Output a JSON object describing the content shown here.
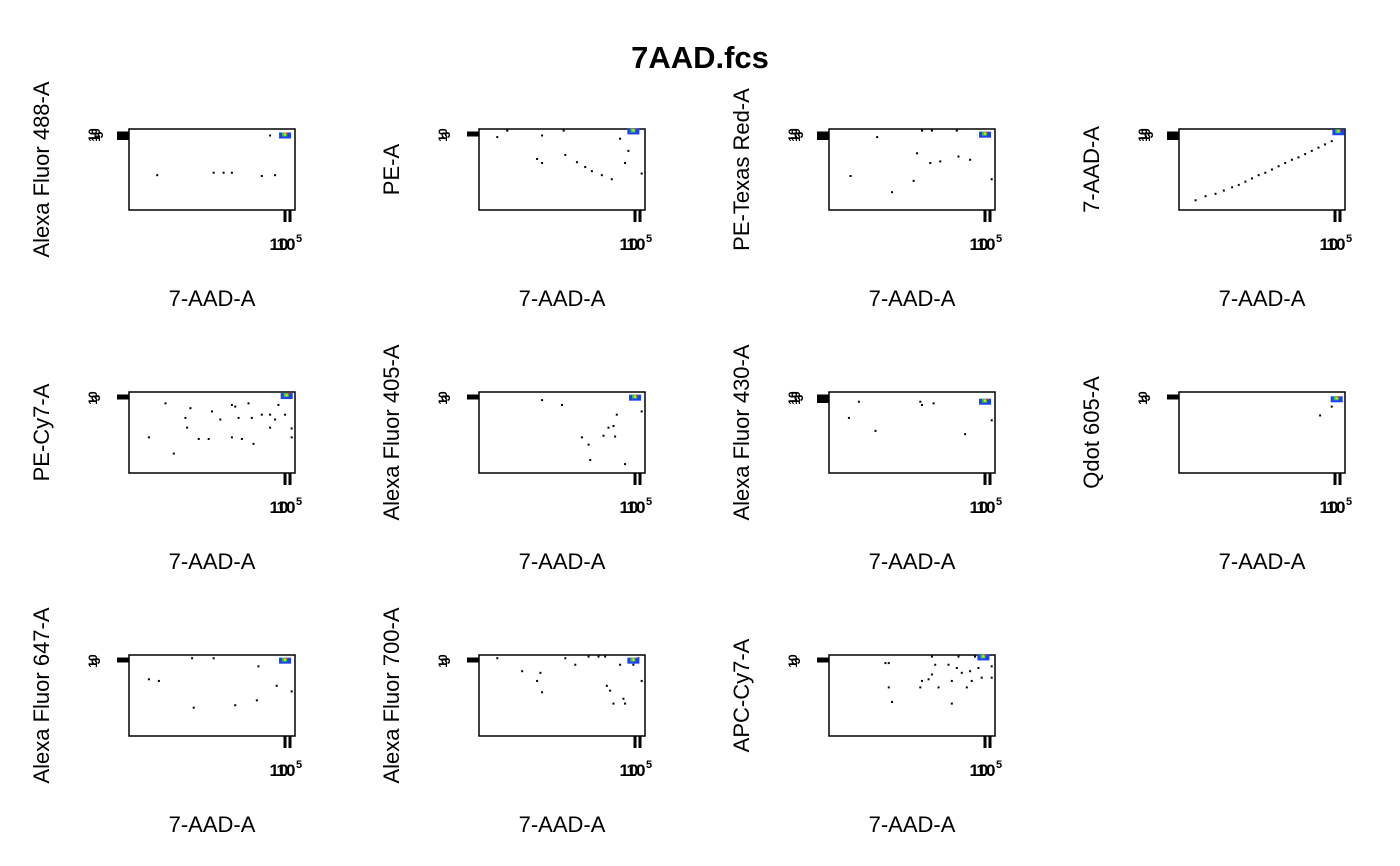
{
  "page": {
    "title": "7AAD.fcs"
  },
  "colors": {
    "axis": "#000000",
    "dot": "#000000",
    "dense_low": "#1f3fff",
    "dense_mid": "#2ecc40",
    "dense_high": "#ffdc00",
    "dense_peak": "#ff3b1f"
  },
  "chart_data": [
    {
      "type": "scatter",
      "xlabel": "7-AAD-A",
      "ylabel": "Alexa Fluor 488-A",
      "x_ticks": [
        "10",
        "10",
        "5"
      ],
      "y_ticks": [
        "10",
        "10",
        "5"
      ],
      "xlim": [
        0,
        1
      ],
      "ylim": [
        0,
        1
      ],
      "points": [
        [
          0.17,
          0.43
        ],
        [
          0.51,
          0.46
        ],
        [
          0.57,
          0.46
        ],
        [
          0.62,
          0.46
        ],
        [
          0.8,
          0.42
        ],
        [
          0.88,
          0.43
        ],
        [
          0.85,
          0.92
        ]
      ],
      "dense_cluster": {
        "x": 0.94,
        "y": 0.92
      }
    },
    {
      "type": "scatter",
      "xlabel": "7-AAD-A",
      "ylabel": "PE-A",
      "x_ticks": [
        "10",
        "10",
        "5"
      ],
      "y_ticks": [
        "10",
        "3"
      ],
      "xlim": [
        0,
        1
      ],
      "ylim": [
        0,
        1
      ],
      "points": [
        [
          0.11,
          0.9
        ],
        [
          0.17,
          0.98
        ],
        [
          0.38,
          0.92
        ],
        [
          0.51,
          0.98
        ],
        [
          0.35,
          0.63
        ],
        [
          0.38,
          0.58
        ],
        [
          0.52,
          0.68
        ],
        [
          0.59,
          0.59
        ],
        [
          0.64,
          0.53
        ],
        [
          0.68,
          0.48
        ],
        [
          0.74,
          0.43
        ],
        [
          0.8,
          0.38
        ],
        [
          0.85,
          0.88
        ],
        [
          0.88,
          0.58
        ],
        [
          0.9,
          0.73
        ],
        [
          0.98,
          0.45
        ]
      ],
      "dense_cluster": {
        "x": 0.93,
        "y": 0.97
      }
    },
    {
      "type": "scatter",
      "xlabel": "7-AAD-A",
      "ylabel": "PE-Texas Red-A",
      "x_ticks": [
        "10",
        "10",
        "5"
      ],
      "y_ticks": [
        "10",
        "10",
        "3"
      ],
      "xlim": [
        0,
        1
      ],
      "ylim": [
        0,
        1
      ],
      "points": [
        [
          0.13,
          0.42
        ],
        [
          0.29,
          0.9
        ],
        [
          0.56,
          0.98
        ],
        [
          0.62,
          0.98
        ],
        [
          0.77,
          0.98
        ],
        [
          0.53,
          0.7
        ],
        [
          0.61,
          0.58
        ],
        [
          0.67,
          0.6
        ],
        [
          0.78,
          0.66
        ],
        [
          0.85,
          0.62
        ],
        [
          0.38,
          0.22
        ],
        [
          0.51,
          0.36
        ],
        [
          0.98,
          0.38
        ]
      ],
      "dense_cluster": {
        "x": 0.94,
        "y": 0.93
      }
    },
    {
      "type": "scatter",
      "xlabel": "7-AAD-A",
      "ylabel": "7-AAD-A",
      "x_ticks": [
        "10",
        "10",
        "5"
      ],
      "y_ticks": [
        "10",
        "10",
        "3"
      ],
      "xlim": [
        0,
        1
      ],
      "ylim": [
        0,
        1
      ],
      "points": [
        [
          0.1,
          0.12
        ],
        [
          0.16,
          0.17
        ],
        [
          0.22,
          0.2
        ],
        [
          0.27,
          0.24
        ],
        [
          0.32,
          0.28
        ],
        [
          0.36,
          0.31
        ],
        [
          0.4,
          0.35
        ],
        [
          0.44,
          0.39
        ],
        [
          0.48,
          0.43
        ],
        [
          0.52,
          0.46
        ],
        [
          0.56,
          0.5
        ],
        [
          0.6,
          0.54
        ],
        [
          0.64,
          0.58
        ],
        [
          0.68,
          0.62
        ],
        [
          0.72,
          0.65
        ],
        [
          0.76,
          0.69
        ],
        [
          0.8,
          0.73
        ],
        [
          0.84,
          0.77
        ],
        [
          0.88,
          0.81
        ],
        [
          0.92,
          0.85
        ]
      ],
      "dense_cluster": {
        "x": 0.96,
        "y": 0.96
      }
    },
    {
      "type": "scatter",
      "xlabel": "7-AAD-A",
      "ylabel": "PE-Cy7-A",
      "x_ticks": [
        "10",
        "10",
        "5"
      ],
      "y_ticks": [
        "10",
        "3"
      ],
      "xlim": [
        0,
        1
      ],
      "ylim": [
        0,
        1
      ],
      "points": [
        [
          0.12,
          0.44
        ],
        [
          0.22,
          0.86
        ],
        [
          0.27,
          0.24
        ],
        [
          0.35,
          0.56
        ],
        [
          0.37,
          0.8
        ],
        [
          0.42,
          0.42
        ],
        [
          0.48,
          0.42
        ],
        [
          0.55,
          0.66
        ],
        [
          0.62,
          0.84
        ],
        [
          0.64,
          0.82
        ],
        [
          0.66,
          0.68
        ],
        [
          0.62,
          0.44
        ],
        [
          0.68,
          0.42
        ],
        [
          0.72,
          0.86
        ],
        [
          0.74,
          0.68
        ],
        [
          0.75,
          0.36
        ],
        [
          0.8,
          0.72
        ],
        [
          0.85,
          0.72
        ],
        [
          0.85,
          0.56
        ],
        [
          0.88,
          0.66
        ],
        [
          0.9,
          0.84
        ],
        [
          0.94,
          0.72
        ],
        [
          0.98,
          0.55
        ],
        [
          0.98,
          0.44
        ],
        [
          0.34,
          0.68
        ],
        [
          0.5,
          0.76
        ]
      ],
      "dense_cluster": {
        "x": 0.95,
        "y": 0.95
      }
    },
    {
      "type": "scatter",
      "xlabel": "7-AAD-A",
      "ylabel": "Alexa Fluor 405-A",
      "x_ticks": [
        "10",
        "10",
        "5"
      ],
      "y_ticks": [
        "10",
        "3"
      ],
      "xlim": [
        0,
        1
      ],
      "ylim": [
        0,
        1
      ],
      "points": [
        [
          0.38,
          0.9
        ],
        [
          0.5,
          0.84
        ],
        [
          0.62,
          0.44
        ],
        [
          0.66,
          0.35
        ],
        [
          0.67,
          0.16
        ],
        [
          0.75,
          0.46
        ],
        [
          0.78,
          0.56
        ],
        [
          0.81,
          0.58
        ],
        [
          0.82,
          0.45
        ],
        [
          0.83,
          0.72
        ],
        [
          0.88,
          0.11
        ],
        [
          0.92,
          0.92
        ],
        [
          0.98,
          0.76
        ]
      ],
      "dense_cluster": {
        "x": 0.94,
        "y": 0.93
      }
    },
    {
      "type": "scatter",
      "xlabel": "7-AAD-A",
      "ylabel": "Alexa Fluor 430-A",
      "x_ticks": [
        "10",
        "10",
        "5"
      ],
      "y_ticks": [
        "10",
        "10",
        "3"
      ],
      "xlim": [
        0,
        1
      ],
      "ylim": [
        0,
        1
      ],
      "points": [
        [
          0.12,
          0.68
        ],
        [
          0.18,
          0.88
        ],
        [
          0.28,
          0.52
        ],
        [
          0.55,
          0.88
        ],
        [
          0.56,
          0.84
        ],
        [
          0.63,
          0.86
        ],
        [
          0.82,
          0.48
        ],
        [
          0.98,
          0.65
        ]
      ],
      "dense_cluster": {
        "x": 0.94,
        "y": 0.88
      }
    },
    {
      "type": "scatter",
      "xlabel": "7-AAD-A",
      "ylabel": "Qdot 605-A",
      "x_ticks": [
        "10",
        "10",
        "5"
      ],
      "y_ticks": [
        "10",
        "3"
      ],
      "xlim": [
        0,
        1
      ],
      "ylim": [
        0,
        1
      ],
      "points": [
        [
          0.85,
          0.71
        ],
        [
          0.92,
          0.82
        ]
      ],
      "dense_cluster": {
        "x": 0.95,
        "y": 0.91
      }
    },
    {
      "type": "scatter",
      "xlabel": "7-AAD-A",
      "ylabel": "Alexa Fluor 647-A",
      "x_ticks": [
        "10",
        "10",
        "5"
      ],
      "y_ticks": [
        "10",
        "3"
      ],
      "xlim": [
        0,
        1
      ],
      "ylim": [
        0,
        1
      ],
      "points": [
        [
          0.12,
          0.7
        ],
        [
          0.18,
          0.68
        ],
        [
          0.38,
          0.96
        ],
        [
          0.51,
          0.96
        ],
        [
          0.64,
          0.38
        ],
        [
          0.78,
          0.86
        ],
        [
          0.77,
          0.44
        ],
        [
          0.89,
          0.62
        ],
        [
          0.98,
          0.55
        ],
        [
          0.39,
          0.35
        ]
      ],
      "dense_cluster": {
        "x": 0.94,
        "y": 0.93
      }
    },
    {
      "type": "scatter",
      "xlabel": "7-AAD-A",
      "ylabel": "Alexa Fluor 700-A",
      "x_ticks": [
        "10",
        "10",
        "5"
      ],
      "y_ticks": [
        "10",
        "3"
      ],
      "xlim": [
        0,
        1
      ],
      "ylim": [
        0,
        1
      ],
      "points": [
        [
          0.11,
          0.96
        ],
        [
          0.26,
          0.8
        ],
        [
          0.35,
          0.68
        ],
        [
          0.37,
          0.78
        ],
        [
          0.38,
          0.54
        ],
        [
          0.52,
          0.96
        ],
        [
          0.58,
          0.88
        ],
        [
          0.66,
          0.98
        ],
        [
          0.72,
          0.98
        ],
        [
          0.76,
          0.98
        ],
        [
          0.77,
          0.62
        ],
        [
          0.79,
          0.56
        ],
        [
          0.81,
          0.4
        ],
        [
          0.85,
          0.88
        ],
        [
          0.88,
          0.4
        ],
        [
          0.93,
          0.88
        ],
        [
          0.96,
          0.96
        ],
        [
          0.98,
          0.68
        ],
        [
          0.87,
          0.46
        ]
      ],
      "dense_cluster": {
        "x": 0.93,
        "y": 0.93
      }
    },
    {
      "type": "scatter",
      "xlabel": "7-AAD-A",
      "ylabel": "APC-Cy7-A",
      "x_ticks": [
        "10",
        "10",
        "5"
      ],
      "y_ticks": [
        "10",
        "3"
      ],
      "xlim": [
        0,
        1
      ],
      "ylim": [
        0,
        1
      ],
      "points": [
        [
          0.34,
          0.9
        ],
        [
          0.36,
          0.9
        ],
        [
          0.36,
          0.6
        ],
        [
          0.38,
          0.42
        ],
        [
          0.55,
          0.6
        ],
        [
          0.56,
          0.68
        ],
        [
          0.6,
          0.7
        ],
        [
          0.62,
          0.76
        ],
        [
          0.62,
          0.98
        ],
        [
          0.64,
          0.88
        ],
        [
          0.66,
          0.6
        ],
        [
          0.72,
          0.88
        ],
        [
          0.74,
          0.68
        ],
        [
          0.74,
          0.4
        ],
        [
          0.77,
          0.84
        ],
        [
          0.78,
          0.98
        ],
        [
          0.8,
          0.78
        ],
        [
          0.85,
          0.8
        ],
        [
          0.86,
          0.68
        ],
        [
          0.88,
          0.98
        ],
        [
          0.9,
          0.84
        ],
        [
          0.92,
          0.72
        ],
        [
          0.98,
          0.86
        ],
        [
          0.98,
          0.72
        ],
        [
          0.83,
          0.6
        ]
      ],
      "dense_cluster": {
        "x": 0.93,
        "y": 0.97
      }
    }
  ]
}
